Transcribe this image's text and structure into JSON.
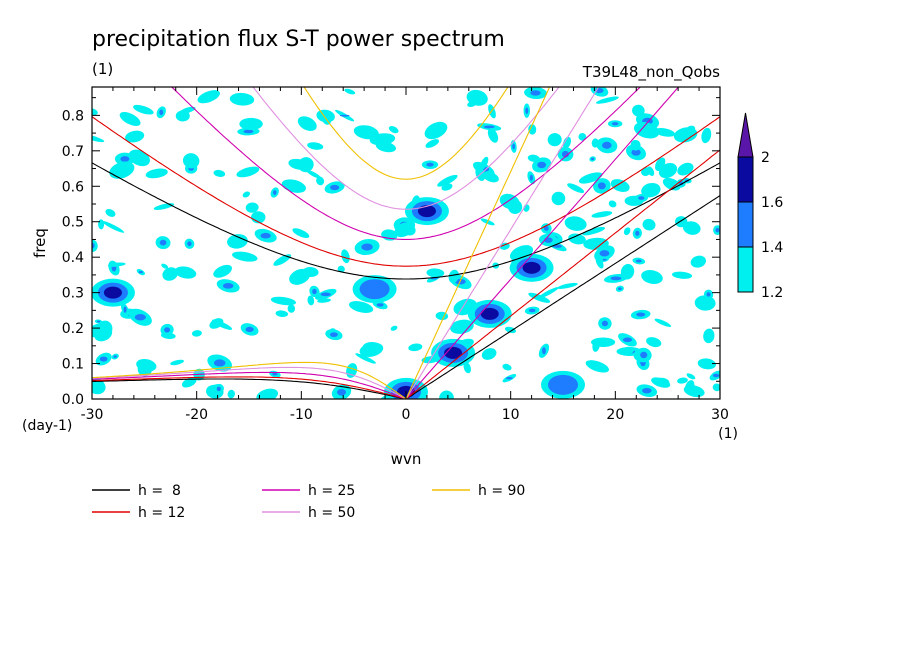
{
  "chart_data": {
    "type": "heatmap",
    "title": "precipitation flux S-T power spectrum",
    "subtitle_left": "(1)",
    "subtitle_right": "T39L48_non_Qobs",
    "xlabel": "wvn",
    "ylabel": "freq",
    "x_unit": "(1)",
    "y_unit": "(day-1)",
    "xlim": [
      -30,
      30
    ],
    "ylim": [
      0,
      0.88
    ],
    "x_ticks": [
      -30,
      -20,
      -10,
      0,
      10,
      20,
      30
    ],
    "y_ticks": [
      0.0,
      0.1,
      0.2,
      0.3,
      0.4,
      0.5,
      0.6,
      0.7,
      0.8
    ],
    "x_tick_labels": [
      "-30",
      "-20",
      "-10",
      "0",
      "10",
      "20",
      "30"
    ],
    "y_tick_labels": [
      "0.0",
      "0.1",
      "0.2",
      "0.3",
      "0.4",
      "0.5",
      "0.6",
      "0.7",
      "0.8"
    ],
    "colorbar": {
      "levels": [
        1.2,
        1.4,
        1.6,
        2
      ],
      "level_labels": [
        "1.2",
        "1.4",
        "1.6",
        "2"
      ],
      "colors": [
        "#00f0f0",
        "#1e7cff",
        "#0a0aa0",
        "#5a16a8"
      ]
    },
    "dispersion_curves": [
      {
        "label": "h =  8",
        "h": 8,
        "color": "#000000"
      },
      {
        "label": "h = 12",
        "h": 12,
        "color": "#e00000"
      },
      {
        "label": "h = 25",
        "h": 25,
        "color": "#d000b0"
      },
      {
        "label": "h = 50",
        "h": 50,
        "color": "#e090e0"
      },
      {
        "label": "h = 90",
        "h": 90,
        "color": "#f0c000"
      }
    ],
    "notable_patches": [
      {
        "wvn": 4.5,
        "freq": 0.13,
        "level": 1.6
      },
      {
        "wvn": 8,
        "freq": 0.24,
        "level": 1.6
      },
      {
        "wvn": -3,
        "freq": 0.31,
        "level": 1.4
      },
      {
        "wvn": 12,
        "freq": 0.37,
        "level": 1.6
      },
      {
        "wvn": 0,
        "freq": 0.02,
        "level": 1.6
      },
      {
        "wvn": 15,
        "freq": 0.04,
        "level": 1.4
      },
      {
        "wvn": -28,
        "freq": 0.3,
        "level": 1.6
      },
      {
        "wvn": 2,
        "freq": 0.53,
        "level": 1.6
      }
    ]
  }
}
